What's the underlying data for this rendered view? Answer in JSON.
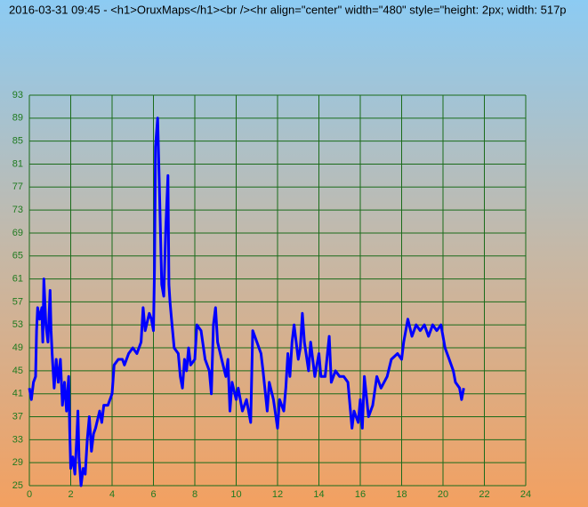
{
  "chart_data": {
    "type": "line",
    "title": "2016-03-31 09:45 - <h1>OruxMaps</h1><br /><hr align=\"center\" width=\"480\" style=\"height: 2px; width: 517p",
    "xlim": [
      0,
      24
    ],
    "xticks": [
      0,
      2,
      4,
      6,
      8,
      10,
      12,
      14,
      16,
      18,
      20,
      22,
      24
    ],
    "ylim": [
      25,
      93
    ],
    "yticks": [
      25,
      29,
      33,
      37,
      41,
      45,
      49,
      53,
      57,
      61,
      65,
      69,
      73,
      77,
      81,
      85,
      89,
      93
    ],
    "grid": true,
    "series": [
      {
        "color": "#0000ff",
        "x": [
          0,
          0.1,
          0.2,
          0.3,
          0.35,
          0.4,
          0.5,
          0.6,
          0.65,
          0.7,
          0.8,
          0.9,
          1.0,
          1.05,
          1.1,
          1.2,
          1.3,
          1.4,
          1.5,
          1.6,
          1.7,
          1.8,
          1.9,
          1.95,
          2.0,
          2.1,
          2.2,
          2.3,
          2.35,
          2.4,
          2.5,
          2.6,
          2.7,
          2.8,
          2.9,
          3.0,
          3.1,
          3.2,
          3.4,
          3.5,
          3.6,
          3.8,
          4.0,
          4.1,
          4.3,
          4.5,
          4.6,
          4.8,
          5.0,
          5.2,
          5.4,
          5.5,
          5.6,
          5.8,
          5.9,
          6.0,
          6.05,
          6.1,
          6.2,
          6.3,
          6.4,
          6.5,
          6.6,
          6.7,
          6.75,
          6.8,
          6.9,
          7.0,
          7.2,
          7.3,
          7.4,
          7.5,
          7.6,
          7.7,
          7.8,
          8.0,
          8.1,
          8.3,
          8.5,
          8.7,
          8.8,
          8.9,
          9.0,
          9.1,
          9.3,
          9.5,
          9.6,
          9.7,
          9.8,
          10.0,
          10.1,
          10.3,
          10.5,
          10.7,
          10.8,
          11.0,
          11.2,
          11.3,
          11.5,
          11.6,
          11.8,
          12.0,
          12.1,
          12.3,
          12.4,
          12.5,
          12.6,
          12.7,
          12.8,
          13.0,
          13.1,
          13.2,
          13.3,
          13.5,
          13.6,
          13.8,
          14.0,
          14.1,
          14.3,
          14.5,
          14.6,
          14.8,
          15.0,
          15.2,
          15.4,
          15.6,
          15.7,
          15.9,
          16.0,
          16.1,
          16.2,
          16.4,
          16.6,
          16.8,
          17.0,
          17.3,
          17.5,
          17.8,
          18.0,
          18.1,
          18.3,
          18.5,
          18.7,
          18.9,
          19.1,
          19.3,
          19.5,
          19.7,
          19.9,
          20.1,
          20.3,
          20.5,
          20.6,
          20.8,
          20.9,
          21.0
        ],
        "values": [
          42,
          40,
          43,
          44,
          52,
          56,
          54,
          56,
          50,
          61,
          53,
          50,
          59,
          52,
          48,
          42,
          47,
          43,
          47,
          39,
          43,
          38,
          44,
          35,
          28,
          30,
          27,
          34,
          38,
          30,
          25,
          28,
          27,
          33,
          37,
          31,
          34,
          35,
          38,
          36,
          39,
          39,
          41,
          46,
          47,
          47,
          46,
          48,
          49,
          48,
          50,
          56,
          52,
          55,
          54,
          52,
          63,
          84,
          89,
          75,
          60,
          58,
          70,
          79,
          60,
          57,
          53,
          49,
          48,
          44,
          42,
          47,
          45,
          49,
          46,
          47,
          53,
          52,
          47,
          45,
          41,
          53,
          56,
          50,
          47,
          44,
          47,
          38,
          43,
          40,
          42,
          38,
          40,
          36,
          52,
          50,
          48,
          45,
          38,
          43,
          40,
          35,
          40,
          38,
          42,
          48,
          44,
          50,
          53,
          47,
          49,
          55,
          50,
          45,
          50,
          44,
          48,
          44,
          44,
          51,
          43,
          45,
          44,
          44,
          43,
          35,
          38,
          36,
          40,
          35,
          44,
          37,
          39,
          44,
          42,
          44,
          47,
          48,
          47,
          50,
          54,
          51,
          53,
          52,
          53,
          51,
          53,
          52,
          53,
          49,
          47,
          45,
          43,
          42,
          40,
          42
        ]
      }
    ]
  }
}
